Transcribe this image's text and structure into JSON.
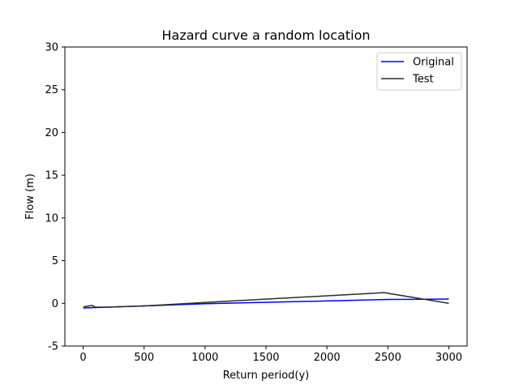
{
  "chart_data": {
    "type": "line",
    "title": "Hazard curve a random location",
    "xlabel": "Return period(y)",
    "ylabel": "Flow (m)",
    "xlim": [
      -150,
      3150
    ],
    "ylim": [
      -5,
      30
    ],
    "xticks": [
      0,
      500,
      1000,
      1500,
      2000,
      2500,
      3000
    ],
    "yticks": [
      -5,
      0,
      5,
      10,
      15,
      20,
      25,
      30
    ],
    "grid": false,
    "legend_position": "upper right",
    "series": [
      {
        "name": "Original",
        "color": "#0000ff",
        "x": [
          2,
          5,
          10,
          25,
          50,
          100,
          200,
          500,
          1000,
          2500,
          3000
        ],
        "y": [
          -0.55,
          -0.55,
          -0.54,
          -0.53,
          -0.52,
          -0.5,
          -0.45,
          -0.3,
          -0.05,
          0.45,
          0.5
        ]
      },
      {
        "name": "Test",
        "color": "#2b2b2b",
        "x": [
          2,
          5,
          10,
          25,
          50,
          75,
          100,
          200,
          500,
          1000,
          2470,
          3000
        ],
        "y": [
          -0.5,
          -0.45,
          -0.4,
          -0.35,
          -0.3,
          -0.25,
          -0.45,
          -0.45,
          -0.3,
          0.1,
          1.25,
          0.0
        ]
      }
    ]
  }
}
